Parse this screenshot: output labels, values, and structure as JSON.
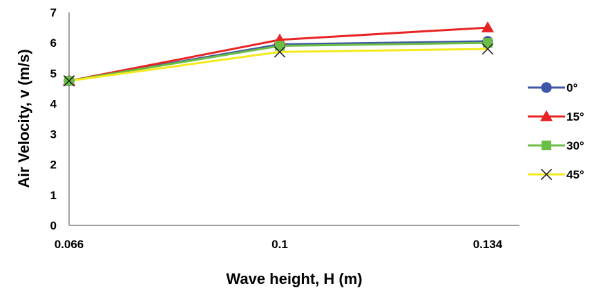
{
  "chart_data": {
    "type": "line",
    "title": "",
    "xlabel": "Wave height, H (m)",
    "ylabel": "Air Velocity, v  (m/s)",
    "categories": [
      "0.066",
      "0.1",
      "0.134"
    ],
    "ylim": [
      0,
      7
    ],
    "yticks": [
      "0",
      "1",
      "2",
      "3",
      "4",
      "5",
      "6",
      "7"
    ],
    "grid": false,
    "legend_position": "right",
    "series": [
      {
        "name": "0°",
        "values": [
          4.75,
          5.95,
          6.05
        ],
        "color": "#3f55a5",
        "marker": "circle"
      },
      {
        "name": "15°",
        "values": [
          4.75,
          6.1,
          6.5
        ],
        "color": "#e82324",
        "marker": "triangle"
      },
      {
        "name": "30°",
        "values": [
          4.75,
          5.9,
          6.0
        ],
        "color": "#6abd45",
        "marker": "square"
      },
      {
        "name": "45°",
        "values": [
          4.75,
          5.7,
          5.8
        ],
        "color": "#f4ea1b",
        "marker": "x"
      }
    ]
  }
}
